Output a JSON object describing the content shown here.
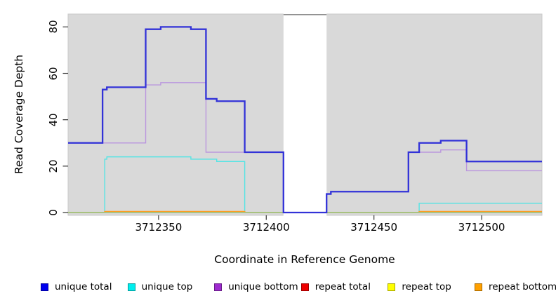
{
  "chart_data": {
    "type": "line",
    "subtype": "step-coverage",
    "title": "",
    "xlabel": "Coordinate in Reference Genome",
    "ylabel": "Read Coverage Depth",
    "xlim": [
      3712308,
      3712528
    ],
    "ylim": [
      0,
      85
    ],
    "x_ticks": [
      3712350,
      3712400,
      3712450,
      3712500
    ],
    "y_ticks": [
      0,
      20,
      40,
      60,
      80
    ],
    "grid": false,
    "plot_background": "#d9d9d9",
    "plot_border_color": "#c9c9c9",
    "gap_region": {
      "start": 3712408,
      "end": 3712428,
      "fill": "#ffffff",
      "top_border_color": "#8c8c8c"
    },
    "zero_baseline": {
      "value": 0,
      "color": "#94cb94",
      "segments": [
        [
          3712308,
          3712408
        ],
        [
          3712428,
          3712528
        ]
      ]
    },
    "series": [
      {
        "name": "unique total",
        "color": "#3232d8",
        "legend_color": "#0000ee",
        "width": 2.3,
        "end": 3712528,
        "steps": [
          [
            3712308,
            30
          ],
          [
            3712324,
            53
          ],
          [
            3712326,
            54
          ],
          [
            3712344,
            79
          ],
          [
            3712351,
            80
          ],
          [
            3712365,
            79
          ],
          [
            3712372,
            49
          ],
          [
            3712377,
            48
          ],
          [
            3712390,
            26
          ],
          [
            3712408,
            0
          ],
          [
            3712428,
            8
          ],
          [
            3712430,
            9
          ],
          [
            3712466,
            26
          ],
          [
            3712471,
            30
          ],
          [
            3712481,
            31
          ],
          [
            3712493,
            22
          ]
        ]
      },
      {
        "name": "unique top",
        "color": "#55e4e4",
        "legend_color": "#00eeee",
        "width": 1.4,
        "end": 3712528,
        "steps": [
          [
            3712308,
            0
          ],
          [
            3712325,
            23
          ],
          [
            3712326,
            24
          ],
          [
            3712365,
            23
          ],
          [
            3712377,
            22
          ],
          [
            3712390,
            0
          ],
          [
            3712471,
            4
          ]
        ]
      },
      {
        "name": "unique bottom",
        "color": "#bb97de",
        "legend_color": "#9e2bcf",
        "width": 1.4,
        "end": 3712528,
        "steps": [
          [
            3712308,
            30
          ],
          [
            3712344,
            55
          ],
          [
            3712351,
            56
          ],
          [
            3712372,
            26
          ],
          [
            3712408,
            0
          ],
          [
            3712428,
            8
          ],
          [
            3712430,
            9
          ],
          [
            3712466,
            26
          ],
          [
            3712481,
            27
          ],
          [
            3712493,
            18
          ]
        ]
      },
      {
        "name": "repeat total",
        "color": "#dd0000",
        "legend_color": "#ee0000",
        "width": 1.2,
        "end": 3712528,
        "steps": [
          [
            3712308,
            0
          ]
        ]
      },
      {
        "name": "repeat top",
        "color": "#f2f200",
        "legend_color": "#ffff00",
        "width": 1.2,
        "end": 3712528,
        "steps": [
          [
            3712308,
            0
          ]
        ]
      },
      {
        "name": "repeat bottom",
        "color": "#ff9b20",
        "legend_color": "#ffa000",
        "width": 1.8,
        "end": 3712528,
        "steps": [
          [
            3712308,
            0
          ],
          [
            3712325,
            0.4
          ],
          [
            3712390,
            0
          ],
          [
            3712471,
            0.4
          ]
        ]
      }
    ],
    "draw_order": [
      "repeat total",
      "repeat top",
      "unique top",
      "repeat bottom",
      "unique bottom",
      "unique total"
    ],
    "legend_position": "bottom",
    "legend": [
      {
        "label": "unique total"
      },
      {
        "label": "unique top"
      },
      {
        "label": "unique bottom"
      },
      {
        "label": "repeat total"
      },
      {
        "label": "repeat top"
      },
      {
        "label": "repeat bottom"
      }
    ]
  }
}
